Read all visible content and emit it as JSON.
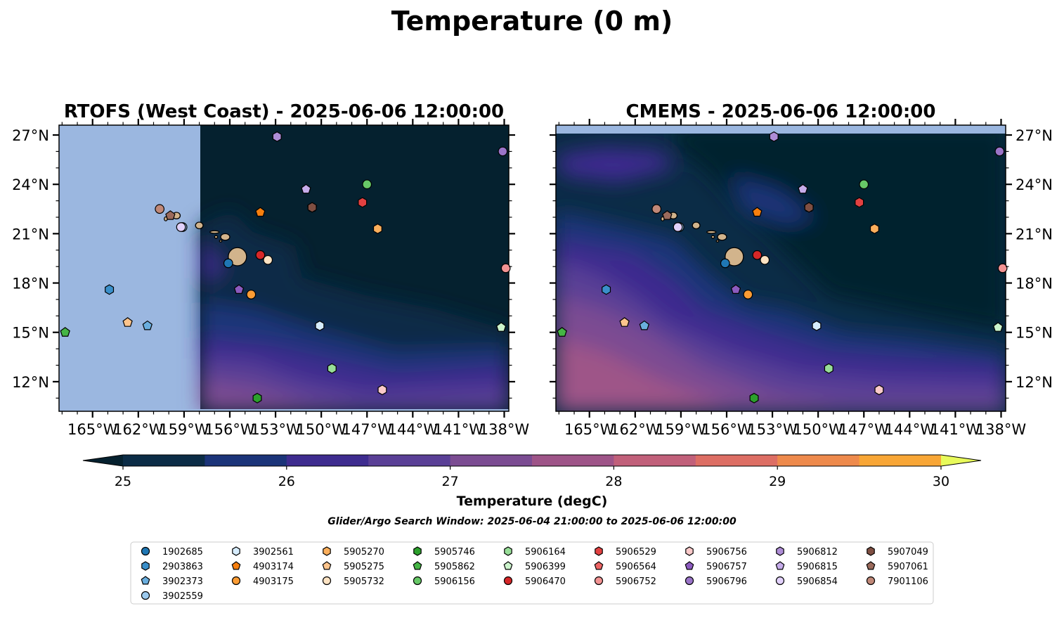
{
  "figure": {
    "suptitle": "Temperature (0 m)",
    "search_window": "Glider/Argo Search Window: 2025-06-04 21:00:00 to 2025-06-06 12:00:00"
  },
  "colors": {
    "land": "#d2b48c",
    "nodata": "#9bb7e0",
    "colormap": [
      "#05212f",
      "#0b2c46",
      "#1b3479",
      "#3e2c8f",
      "#5a3f96",
      "#7b4c92",
      "#9e5488",
      "#c1607a",
      "#dd6e64",
      "#ee8a4c",
      "#f8a636",
      "#fbc83a",
      "#e8fa5b"
    ]
  },
  "chart_data": {
    "type": "map",
    "grid": false,
    "lon_range": [
      -167.2,
      -137.7
    ],
    "lat_range": [
      10.2,
      27.6
    ],
    "xticks": [
      -165,
      -162,
      -159,
      -156,
      -153,
      -150,
      -147,
      -144,
      -141,
      -138
    ],
    "xtick_labels": [
      "165°W",
      "162°W",
      "159°W",
      "156°W",
      "153°W",
      "150°W",
      "147°W",
      "144°W",
      "141°W",
      "138°W"
    ],
    "yticks": [
      12,
      15,
      18,
      21,
      24,
      27
    ],
    "ytick_labels": [
      "12°N",
      "15°N",
      "18°N",
      "21°N",
      "24°N",
      "27°N"
    ],
    "panels": [
      {
        "title": "RTOFS (West Coast) - 2025-06-06 12:00:00",
        "model": "RTOFS",
        "domain_west_lon": -158.0,
        "ylabel_side": "left"
      },
      {
        "title": "CMEMS - 2025-06-06 12:00:00",
        "model": "CMEMS",
        "domain_north_lat": 27.1,
        "ylabel_side": "right"
      }
    ],
    "colorbar": {
      "label": "Temperature (degC)",
      "min": 25,
      "max": 30,
      "step": 0.5,
      "ticks": [
        25,
        26,
        27,
        28,
        29,
        30
      ],
      "tick_labels": [
        "25",
        "26",
        "27",
        "28",
        "29",
        "30"
      ],
      "extend": "both"
    },
    "floats": [
      {
        "id": "1902685",
        "marker": "circle",
        "color": "#1f77b4",
        "lon": -156.1,
        "lat": 19.2
      },
      {
        "id": "2903863",
        "marker": "hexagon",
        "color": "#3a8fca",
        "lon": -163.9,
        "lat": 17.6
      },
      {
        "id": "3902373",
        "marker": "pentagon",
        "color": "#6aaede",
        "lon": -161.4,
        "lat": 15.4
      },
      {
        "id": "3902559",
        "marker": "circle",
        "color": "#9ccaee",
        "lon": -159.1,
        "lat": 21.4
      },
      {
        "id": "3902561",
        "marker": "hexagon",
        "color": "#d6ecfd",
        "lon": -150.1,
        "lat": 15.4
      },
      {
        "id": "4903174",
        "marker": "pentagon",
        "color": "#f77f0e",
        "lon": -154.0,
        "lat": 22.3
      },
      {
        "id": "4903175",
        "marker": "circle",
        "color": "#fb9c34",
        "lon": -154.6,
        "lat": 17.3
      },
      {
        "id": "5905270",
        "marker": "hexagon",
        "color": "#fcaf5c",
        "lon": -146.3,
        "lat": 21.3
      },
      {
        "id": "5905275",
        "marker": "pentagon",
        "color": "#fdc48c",
        "lon": -162.7,
        "lat": 15.6
      },
      {
        "id": "5905732",
        "marker": "circle",
        "color": "#fde3c3",
        "lon": -153.5,
        "lat": 19.4
      },
      {
        "id": "5905746",
        "marker": "hexagon",
        "color": "#2ca02c",
        "lon": -154.2,
        "lat": 11.0
      },
      {
        "id": "5905862",
        "marker": "pentagon",
        "color": "#45b545",
        "lon": -166.8,
        "lat": 15.0
      },
      {
        "id": "5906156",
        "marker": "circle",
        "color": "#67c867",
        "lon": -147.0,
        "lat": 24.0
      },
      {
        "id": "5906164",
        "marker": "hexagon",
        "color": "#98de98",
        "lon": -149.3,
        "lat": 12.8
      },
      {
        "id": "5906399",
        "marker": "pentagon",
        "color": "#ccf4cc",
        "lon": -138.2,
        "lat": 15.3
      },
      {
        "id": "5906470",
        "marker": "circle",
        "color": "#d62728",
        "lon": -154.0,
        "lat": 19.7
      },
      {
        "id": "5906529",
        "marker": "hexagon",
        "color": "#e34141",
        "lon": -147.3,
        "lat": 22.9
      },
      {
        "id": "5906564",
        "marker": "pentagon",
        "color": "#ec6464",
        "lon": -150.6,
        "lat": 22.6
      },
      {
        "id": "5906752",
        "marker": "circle",
        "color": "#f29393",
        "lon": -137.9,
        "lat": 18.9
      },
      {
        "id": "5906756",
        "marker": "hexagon",
        "color": "#fbcaca",
        "lon": -146.0,
        "lat": 11.5
      },
      {
        "id": "5906757",
        "marker": "pentagon",
        "color": "#8c5bbf",
        "lon": -155.4,
        "lat": 17.6
      },
      {
        "id": "5906796",
        "marker": "circle",
        "color": "#9a74c8",
        "lon": -138.1,
        "lat": 26.0
      },
      {
        "id": "5906812",
        "marker": "hexagon",
        "color": "#ae8dd6",
        "lon": -152.9,
        "lat": 26.9
      },
      {
        "id": "5906815",
        "marker": "pentagon",
        "color": "#c6acea",
        "lon": -151.0,
        "lat": 23.7
      },
      {
        "id": "5906854",
        "marker": "circle",
        "color": "#e2d1fb",
        "lon": -159.2,
        "lat": 21.4
      },
      {
        "id": "5907049",
        "marker": "hexagon",
        "color": "#7f4f42",
        "lon": -150.6,
        "lat": 22.6
      },
      {
        "id": "5907061",
        "marker": "pentagon",
        "color": "#9a6a5c",
        "lon": -159.9,
        "lat": 22.1
      },
      {
        "id": "7901106",
        "marker": "circle",
        "color": "#c08878",
        "lon": -160.6,
        "lat": 22.5
      }
    ],
    "islands": [
      {
        "name": "Hawaii",
        "lon": -155.5,
        "lat": 19.6,
        "rx": 0.6,
        "ry": 0.55
      },
      {
        "name": "Maui",
        "lon": -156.3,
        "lat": 20.8,
        "rx": 0.3,
        "ry": 0.2
      },
      {
        "name": "Molokai",
        "lon": -157.0,
        "lat": 21.1,
        "rx": 0.3,
        "ry": 0.08
      },
      {
        "name": "Oahu",
        "lon": -158.0,
        "lat": 21.5,
        "rx": 0.25,
        "ry": 0.2
      },
      {
        "name": "Kauai",
        "lon": -159.5,
        "lat": 22.1,
        "rx": 0.25,
        "ry": 0.2
      },
      {
        "name": "Niihau",
        "lon": -160.2,
        "lat": 21.9,
        "rx": 0.1,
        "ry": 0.12
      },
      {
        "name": "Lanai",
        "lon": -156.9,
        "lat": 20.8,
        "rx": 0.1,
        "ry": 0.08
      },
      {
        "name": "Kahoolawe",
        "lon": -156.6,
        "lat": 20.55,
        "rx": 0.08,
        "ry": 0.06
      }
    ]
  }
}
